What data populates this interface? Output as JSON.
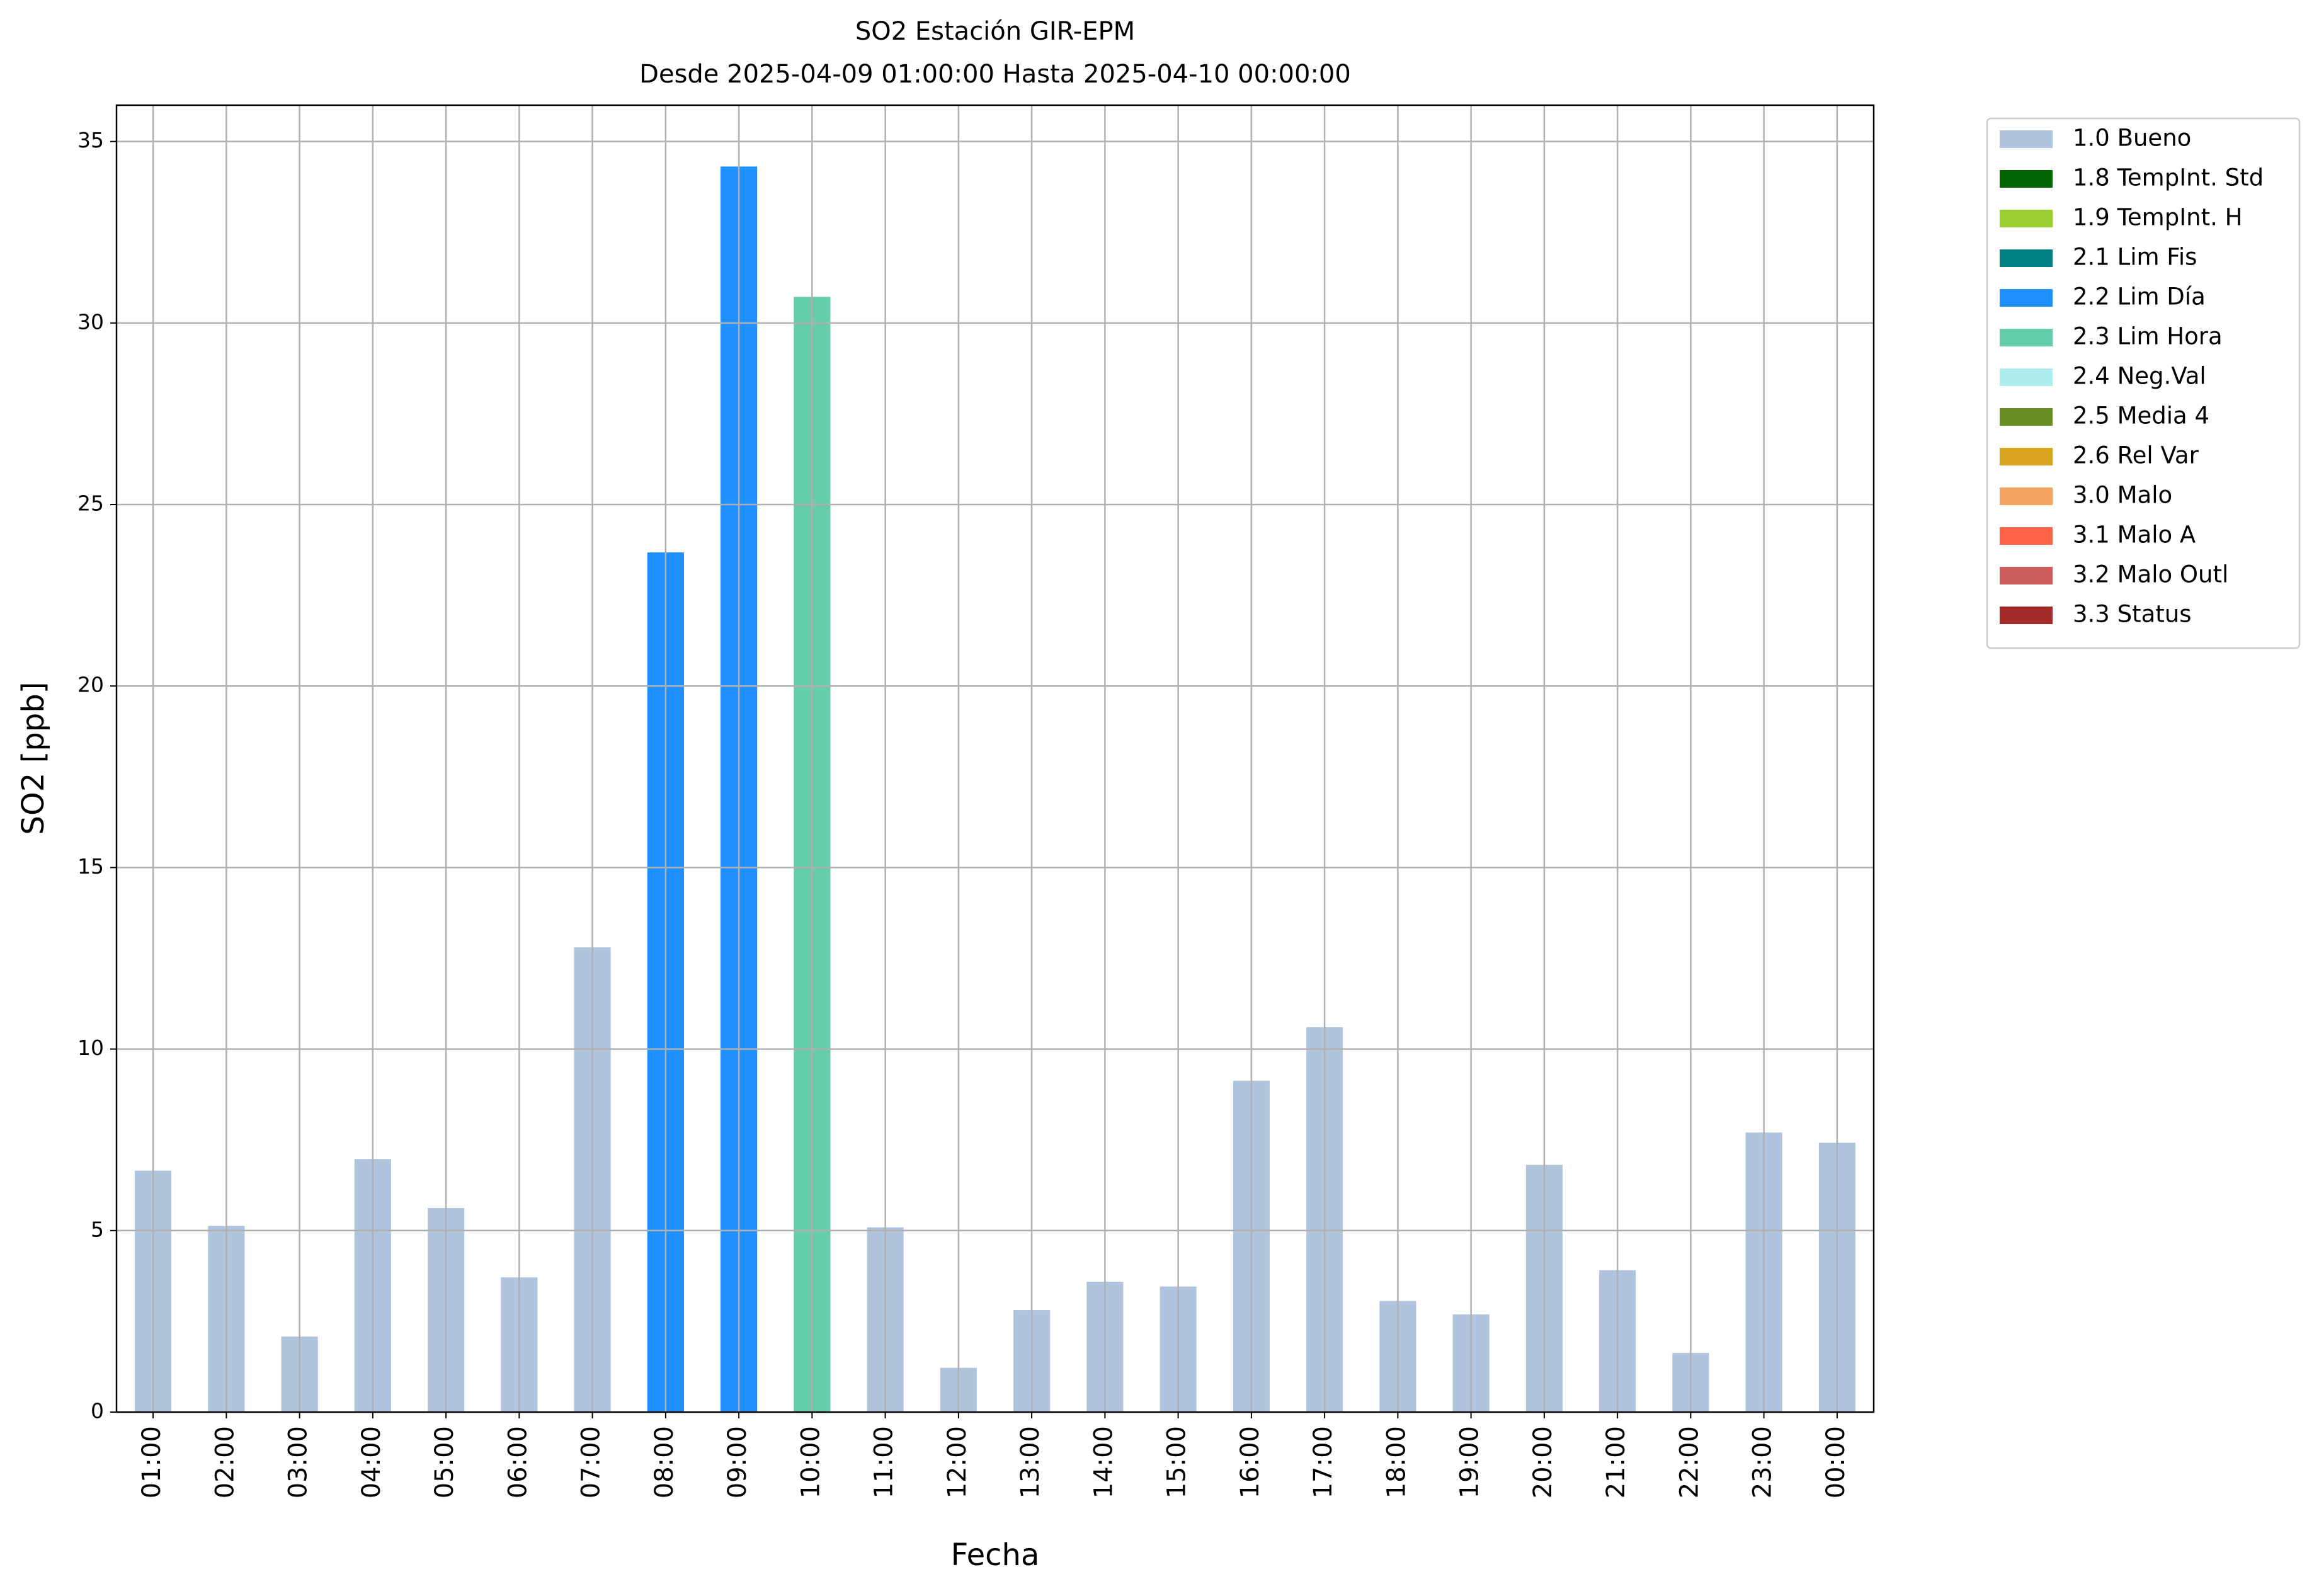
{
  "chart_data": {
    "type": "bar",
    "stacked": true,
    "title": "SO2 Estación GIR-EPM",
    "subtitle": "Desde 2025-04-09 01:00:00 Hasta 2025-04-10 00:00:00",
    "x_label": "Fecha",
    "y_label": "SO2 [ppb]",
    "categories": [
      "01:00",
      "02:00",
      "03:00",
      "04:00",
      "05:00",
      "06:00",
      "07:00",
      "08:00",
      "09:00",
      "10:00",
      "11:00",
      "12:00",
      "13:00",
      "14:00",
      "15:00",
      "16:00",
      "17:00",
      "18:00",
      "19:00",
      "20:00",
      "21:00",
      "22:00",
      "23:00",
      "00:00"
    ],
    "ylim": [
      0,
      36
    ],
    "yticks": [
      0,
      5,
      10,
      15,
      20,
      25,
      30,
      35
    ],
    "grid": true,
    "legend_position": "outside-right",
    "series": [
      {
        "name": "1.0 Bueno",
        "color": "#b0c4de",
        "values": [
          6.65,
          5.13,
          2.08,
          6.97,
          5.62,
          3.71,
          12.8,
          null,
          null,
          null,
          5.09,
          1.22,
          2.81,
          3.59,
          3.46,
          9.13,
          10.6,
          3.06,
          2.69,
          6.81,
          3.91,
          1.63,
          7.7,
          7.42
        ]
      },
      {
        "name": "1.8 TempInt. Std",
        "color": "#006400",
        "values": [
          null,
          null,
          null,
          null,
          null,
          null,
          null,
          null,
          null,
          null,
          null,
          null,
          null,
          null,
          null,
          null,
          null,
          null,
          null,
          null,
          null,
          null,
          null,
          null
        ]
      },
      {
        "name": "1.9 TempInt. H",
        "color": "#9acd32",
        "values": [
          null,
          null,
          null,
          null,
          null,
          null,
          null,
          null,
          null,
          null,
          null,
          null,
          null,
          null,
          null,
          null,
          null,
          null,
          null,
          null,
          null,
          null,
          null,
          null
        ]
      },
      {
        "name": "2.1 Lim Fis",
        "color": "#008080",
        "values": [
          null,
          null,
          null,
          null,
          null,
          null,
          null,
          null,
          null,
          null,
          null,
          null,
          null,
          null,
          null,
          null,
          null,
          null,
          null,
          null,
          null,
          null,
          null,
          null
        ]
      },
      {
        "name": "2.2 Lim Día",
        "color": "#1e90ff",
        "values": [
          null,
          null,
          null,
          null,
          null,
          null,
          null,
          23.68,
          34.31,
          null,
          null,
          null,
          null,
          null,
          null,
          null,
          null,
          null,
          null,
          null,
          null,
          null,
          null,
          null
        ]
      },
      {
        "name": "2.3 Lim Hora",
        "color": "#66cdaa",
        "values": [
          null,
          null,
          null,
          null,
          null,
          null,
          null,
          null,
          null,
          30.72,
          null,
          null,
          null,
          null,
          null,
          null,
          null,
          null,
          null,
          null,
          null,
          null,
          null,
          null
        ]
      },
      {
        "name": "2.4 Neg.Val",
        "color": "#afeeee",
        "values": [
          null,
          null,
          null,
          null,
          null,
          null,
          null,
          null,
          null,
          null,
          null,
          null,
          null,
          null,
          null,
          null,
          null,
          null,
          null,
          null,
          null,
          null,
          null,
          null
        ]
      },
      {
        "name": "2.5 Media 4",
        "color": "#6b8e23",
        "values": [
          null,
          null,
          null,
          null,
          null,
          null,
          null,
          null,
          null,
          null,
          null,
          null,
          null,
          null,
          null,
          null,
          null,
          null,
          null,
          null,
          null,
          null,
          null,
          null
        ]
      },
      {
        "name": "2.6 Rel Var",
        "color": "#daa520",
        "values": [
          null,
          null,
          null,
          null,
          null,
          null,
          null,
          null,
          null,
          null,
          null,
          null,
          null,
          null,
          null,
          null,
          null,
          null,
          null,
          null,
          null,
          null,
          null,
          null
        ]
      },
      {
        "name": "3.0 Malo",
        "color": "#f4a460",
        "values": [
          null,
          null,
          null,
          null,
          null,
          null,
          null,
          null,
          null,
          null,
          null,
          null,
          null,
          null,
          null,
          null,
          null,
          null,
          null,
          null,
          null,
          null,
          null,
          null
        ]
      },
      {
        "name": "3.1 Malo A",
        "color": "#ff6347",
        "values": [
          null,
          null,
          null,
          null,
          null,
          null,
          null,
          null,
          null,
          null,
          null,
          null,
          null,
          null,
          null,
          null,
          null,
          null,
          null,
          null,
          null,
          null,
          null,
          null
        ]
      },
      {
        "name": "3.2 Malo Outl",
        "color": "#cd5c5c",
        "values": [
          null,
          null,
          null,
          null,
          null,
          null,
          null,
          null,
          null,
          null,
          null,
          null,
          null,
          null,
          null,
          null,
          null,
          null,
          null,
          null,
          null,
          null,
          null,
          null
        ]
      },
      {
        "name": "3.3 Status",
        "color": "#a52a2a",
        "values": [
          null,
          null,
          null,
          null,
          null,
          null,
          null,
          null,
          null,
          null,
          null,
          null,
          null,
          null,
          null,
          null,
          null,
          null,
          null,
          null,
          null,
          null,
          null,
          null
        ]
      }
    ]
  }
}
